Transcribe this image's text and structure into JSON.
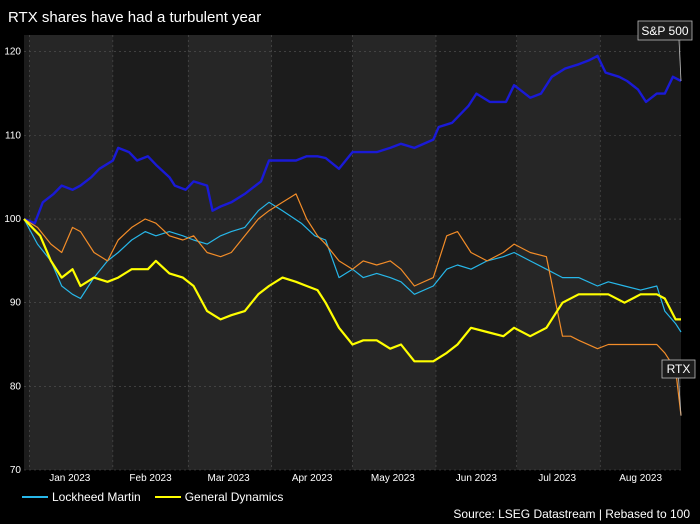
{
  "chart_data": {
    "type": "line",
    "title": "RTX shares have had a turbulent year",
    "xlabel": "",
    "ylabel": "",
    "ylim": [
      70,
      122
    ],
    "y_ticks": [
      70,
      80,
      90,
      100,
      110,
      120
    ],
    "x_months": [
      "Jan 2023",
      "Feb 2023",
      "Mar 2023",
      "Apr 2023",
      "May 2023",
      "Jun 2023",
      "Jul 2023",
      "Aug 2023"
    ],
    "x_start": "2022-12-30",
    "x_end": "2023-08-31",
    "grid": true,
    "legend_position": "bottom-left",
    "source": "Source: LSEG Datastream | Rebased to 100",
    "series": [
      {
        "name": "S&P 500",
        "color": "#1a1ad6",
        "in_legend": false,
        "label": "S&P 500",
        "points": [
          [
            "2022-12-30",
            100
          ],
          [
            "2023-01-03",
            99.5
          ],
          [
            "2023-01-06",
            102
          ],
          [
            "2023-01-10",
            103
          ],
          [
            "2023-01-13",
            104
          ],
          [
            "2023-01-17",
            103.5
          ],
          [
            "2023-01-20",
            104
          ],
          [
            "2023-01-24",
            105
          ],
          [
            "2023-01-27",
            106
          ],
          [
            "2023-02-01",
            107
          ],
          [
            "2023-02-03",
            108.5
          ],
          [
            "2023-02-07",
            108
          ],
          [
            "2023-02-10",
            107
          ],
          [
            "2023-02-14",
            107.5
          ],
          [
            "2023-02-17",
            106.5
          ],
          [
            "2023-02-22",
            105
          ],
          [
            "2023-02-24",
            104
          ],
          [
            "2023-02-28",
            103.5
          ],
          [
            "2023-03-03",
            104.5
          ],
          [
            "2023-03-08",
            104
          ],
          [
            "2023-03-10",
            101
          ],
          [
            "2023-03-13",
            101.5
          ],
          [
            "2023-03-17",
            102
          ],
          [
            "2023-03-22",
            103
          ],
          [
            "2023-03-28",
            104.5
          ],
          [
            "2023-03-31",
            107
          ],
          [
            "2023-04-05",
            107
          ],
          [
            "2023-04-10",
            107
          ],
          [
            "2023-04-14",
            107.5
          ],
          [
            "2023-04-18",
            107.5
          ],
          [
            "2023-04-21",
            107.3
          ],
          [
            "2023-04-26",
            106
          ],
          [
            "2023-05-01",
            108
          ],
          [
            "2023-05-05",
            108
          ],
          [
            "2023-05-10",
            108
          ],
          [
            "2023-05-15",
            108.5
          ],
          [
            "2023-05-19",
            109
          ],
          [
            "2023-05-24",
            108.5
          ],
          [
            "2023-05-31",
            109.5
          ],
          [
            "2023-06-02",
            111
          ],
          [
            "2023-06-07",
            111.5
          ],
          [
            "2023-06-13",
            113.5
          ],
          [
            "2023-06-16",
            115
          ],
          [
            "2023-06-21",
            114
          ],
          [
            "2023-06-27",
            114
          ],
          [
            "2023-06-30",
            116
          ],
          [
            "2023-07-06",
            114.5
          ],
          [
            "2023-07-10",
            115
          ],
          [
            "2023-07-14",
            117
          ],
          [
            "2023-07-19",
            118
          ],
          [
            "2023-07-24",
            118.5
          ],
          [
            "2023-07-28",
            119
          ],
          [
            "2023-07-31",
            119.5
          ],
          [
            "2023-08-03",
            117.5
          ],
          [
            "2023-08-08",
            117
          ],
          [
            "2023-08-11",
            116.5
          ],
          [
            "2023-08-15",
            115.5
          ],
          [
            "2023-08-18",
            114
          ],
          [
            "2023-08-22",
            115
          ],
          [
            "2023-08-25",
            115
          ],
          [
            "2023-08-28",
            117
          ],
          [
            "2023-08-31",
            116.5
          ]
        ]
      },
      {
        "name": "Lockheed Martin",
        "color": "#27b7e9",
        "in_legend": true,
        "points": [
          [
            "2022-12-30",
            100
          ],
          [
            "2023-01-04",
            97
          ],
          [
            "2023-01-09",
            95
          ],
          [
            "2023-01-13",
            92
          ],
          [
            "2023-01-17",
            91
          ],
          [
            "2023-01-20",
            90.5
          ],
          [
            "2023-01-25",
            93
          ],
          [
            "2023-01-30",
            95
          ],
          [
            "2023-02-03",
            96
          ],
          [
            "2023-02-08",
            97.5
          ],
          [
            "2023-02-13",
            98.5
          ],
          [
            "2023-02-17",
            98
          ],
          [
            "2023-02-22",
            98.5
          ],
          [
            "2023-02-27",
            98
          ],
          [
            "2023-03-03",
            97.5
          ],
          [
            "2023-03-08",
            97
          ],
          [
            "2023-03-13",
            98
          ],
          [
            "2023-03-17",
            98.5
          ],
          [
            "2023-03-22",
            99
          ],
          [
            "2023-03-27",
            101
          ],
          [
            "2023-03-31",
            102
          ],
          [
            "2023-04-05",
            101
          ],
          [
            "2023-04-12",
            99.5
          ],
          [
            "2023-04-17",
            98
          ],
          [
            "2023-04-21",
            97.5
          ],
          [
            "2023-04-26",
            93
          ],
          [
            "2023-05-01",
            94
          ],
          [
            "2023-05-05",
            93
          ],
          [
            "2023-05-10",
            93.5
          ],
          [
            "2023-05-15",
            93
          ],
          [
            "2023-05-19",
            92.5
          ],
          [
            "2023-05-24",
            91
          ],
          [
            "2023-05-31",
            92
          ],
          [
            "2023-06-05",
            94
          ],
          [
            "2023-06-09",
            94.5
          ],
          [
            "2023-06-14",
            94
          ],
          [
            "2023-06-20",
            95
          ],
          [
            "2023-06-26",
            95.5
          ],
          [
            "2023-06-30",
            96
          ],
          [
            "2023-07-06",
            95
          ],
          [
            "2023-07-12",
            94
          ],
          [
            "2023-07-18",
            93
          ],
          [
            "2023-07-24",
            93
          ],
          [
            "2023-07-31",
            92
          ],
          [
            "2023-08-04",
            92.5
          ],
          [
            "2023-08-10",
            92
          ],
          [
            "2023-08-16",
            91.5
          ],
          [
            "2023-08-22",
            92
          ],
          [
            "2023-08-25",
            89
          ],
          [
            "2023-08-29",
            87.5
          ],
          [
            "2023-08-31",
            86.5
          ]
        ]
      },
      {
        "name": "General Dynamics",
        "color": "#ffff00",
        "in_legend": true,
        "points": [
          [
            "2022-12-30",
            100
          ],
          [
            "2023-01-05",
            98
          ],
          [
            "2023-01-09",
            95
          ],
          [
            "2023-01-13",
            93
          ],
          [
            "2023-01-17",
            94
          ],
          [
            "2023-01-20",
            92
          ],
          [
            "2023-01-25",
            93
          ],
          [
            "2023-01-30",
            92.5
          ],
          [
            "2023-02-03",
            93
          ],
          [
            "2023-02-08",
            94
          ],
          [
            "2023-02-14",
            94
          ],
          [
            "2023-02-17",
            95
          ],
          [
            "2023-02-22",
            93.5
          ],
          [
            "2023-02-27",
            93
          ],
          [
            "2023-03-03",
            92
          ],
          [
            "2023-03-08",
            89
          ],
          [
            "2023-03-13",
            88
          ],
          [
            "2023-03-17",
            88.5
          ],
          [
            "2023-03-22",
            89
          ],
          [
            "2023-03-27",
            91
          ],
          [
            "2023-03-31",
            92
          ],
          [
            "2023-04-05",
            93
          ],
          [
            "2023-04-10",
            92.5
          ],
          [
            "2023-04-14",
            92
          ],
          [
            "2023-04-18",
            91.5
          ],
          [
            "2023-04-21",
            90
          ],
          [
            "2023-04-26",
            87
          ],
          [
            "2023-05-01",
            85
          ],
          [
            "2023-05-05",
            85.5
          ],
          [
            "2023-05-10",
            85.5
          ],
          [
            "2023-05-15",
            84.5
          ],
          [
            "2023-05-19",
            85
          ],
          [
            "2023-05-24",
            83
          ],
          [
            "2023-05-31",
            83
          ],
          [
            "2023-06-05",
            84
          ],
          [
            "2023-06-09",
            85
          ],
          [
            "2023-06-14",
            87
          ],
          [
            "2023-06-20",
            86.5
          ],
          [
            "2023-06-26",
            86
          ],
          [
            "2023-06-30",
            87
          ],
          [
            "2023-07-06",
            86
          ],
          [
            "2023-07-12",
            87
          ],
          [
            "2023-07-18",
            90
          ],
          [
            "2023-07-24",
            91
          ],
          [
            "2023-07-31",
            91
          ],
          [
            "2023-08-04",
            91
          ],
          [
            "2023-08-10",
            90
          ],
          [
            "2023-08-16",
            91
          ],
          [
            "2023-08-22",
            91
          ],
          [
            "2023-08-25",
            90.5
          ],
          [
            "2023-08-29",
            88
          ],
          [
            "2023-08-31",
            88
          ]
        ]
      },
      {
        "name": "RTX",
        "color": "#f28c28",
        "in_legend": false,
        "label": "RTX",
        "points": [
          [
            "2022-12-30",
            100
          ],
          [
            "2023-01-04",
            99
          ],
          [
            "2023-01-09",
            97
          ],
          [
            "2023-01-13",
            96
          ],
          [
            "2023-01-17",
            99
          ],
          [
            "2023-01-20",
            98.5
          ],
          [
            "2023-01-25",
            96
          ],
          [
            "2023-01-30",
            95
          ],
          [
            "2023-02-03",
            97.5
          ],
          [
            "2023-02-08",
            99
          ],
          [
            "2023-02-13",
            100
          ],
          [
            "2023-02-17",
            99.5
          ],
          [
            "2023-02-22",
            98
          ],
          [
            "2023-02-27",
            97.5
          ],
          [
            "2023-03-03",
            98
          ],
          [
            "2023-03-08",
            96
          ],
          [
            "2023-03-13",
            95.5
          ],
          [
            "2023-03-17",
            96
          ],
          [
            "2023-03-22",
            98
          ],
          [
            "2023-03-27",
            100
          ],
          [
            "2023-03-31",
            101
          ],
          [
            "2023-04-05",
            102
          ],
          [
            "2023-04-10",
            103
          ],
          [
            "2023-04-14",
            100
          ],
          [
            "2023-04-18",
            98
          ],
          [
            "2023-04-21",
            97
          ],
          [
            "2023-04-26",
            95
          ],
          [
            "2023-05-01",
            94
          ],
          [
            "2023-05-05",
            95
          ],
          [
            "2023-05-10",
            94.5
          ],
          [
            "2023-05-15",
            95
          ],
          [
            "2023-05-19",
            94
          ],
          [
            "2023-05-24",
            92
          ],
          [
            "2023-05-31",
            93
          ],
          [
            "2023-06-05",
            98
          ],
          [
            "2023-06-09",
            98.5
          ],
          [
            "2023-06-14",
            96
          ],
          [
            "2023-06-20",
            95
          ],
          [
            "2023-06-26",
            96
          ],
          [
            "2023-06-30",
            97
          ],
          [
            "2023-07-06",
            96
          ],
          [
            "2023-07-12",
            95.5
          ],
          [
            "2023-07-18",
            86
          ],
          [
            "2023-07-21",
            86
          ],
          [
            "2023-07-24",
            85.5
          ],
          [
            "2023-07-31",
            84.5
          ],
          [
            "2023-08-04",
            85
          ],
          [
            "2023-08-10",
            85
          ],
          [
            "2023-08-16",
            85
          ],
          [
            "2023-08-22",
            85
          ],
          [
            "2023-08-25",
            84
          ],
          [
            "2023-08-29",
            82
          ],
          [
            "2023-08-31",
            76.5
          ]
        ]
      }
    ]
  }
}
